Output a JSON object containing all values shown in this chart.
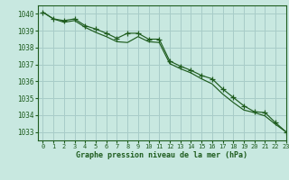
{
  "line1_x": [
    0,
    1,
    2,
    3,
    4,
    5,
    6,
    7,
    8,
    9,
    10,
    11,
    12,
    13,
    14,
    15,
    16,
    17,
    18,
    19,
    20,
    21,
    22,
    23
  ],
  "line1_y": [
    1040.1,
    1039.7,
    1039.6,
    1039.7,
    1039.3,
    1039.1,
    1038.85,
    1038.55,
    1038.85,
    1038.85,
    1038.5,
    1038.5,
    1037.2,
    1036.9,
    1036.65,
    1036.35,
    1036.15,
    1035.55,
    1035.05,
    1034.55,
    1034.2,
    1034.15,
    1033.55,
    1033.0
  ],
  "line2_x": [
    0,
    1,
    2,
    3,
    4,
    5,
    6,
    7,
    8,
    9,
    10,
    11,
    12,
    13,
    14,
    15,
    16,
    17,
    18,
    19,
    20,
    21,
    22,
    23
  ],
  "line2_y": [
    1040.1,
    1039.7,
    1039.5,
    1039.6,
    1039.2,
    1038.9,
    1038.65,
    1038.35,
    1038.3,
    1038.65,
    1038.35,
    1038.3,
    1037.05,
    1036.75,
    1036.5,
    1036.15,
    1035.85,
    1035.25,
    1034.75,
    1034.3,
    1034.15,
    1033.95,
    1033.45,
    1033.0
  ],
  "line_color": "#1e5c1e",
  "background_color": "#c8e8e0",
  "grid_color": "#a8ccc8",
  "text_color": "#1e5c1e",
  "xlabel": "Graphe pression niveau de la mer (hPa)",
  "ylim": [
    1032.5,
    1040.5
  ],
  "xlim": [
    -0.5,
    23
  ],
  "yticks": [
    1033,
    1034,
    1035,
    1036,
    1037,
    1038,
    1039,
    1040
  ],
  "xticks": [
    0,
    1,
    2,
    3,
    4,
    5,
    6,
    7,
    8,
    9,
    10,
    11,
    12,
    13,
    14,
    15,
    16,
    17,
    18,
    19,
    20,
    21,
    22,
    23
  ]
}
